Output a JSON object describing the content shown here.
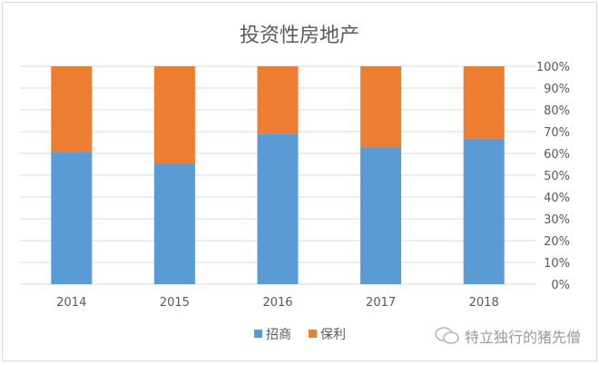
{
  "chart_data": {
    "type": "bar",
    "stacked": "percent",
    "title": "投资性房地产",
    "categories": [
      "2014",
      "2015",
      "2016",
      "2017",
      "2018"
    ],
    "series": [
      {
        "name": "招商",
        "color": "#5b9bd5",
        "values": [
          60.4,
          55.2,
          68.9,
          62.7,
          66.7
        ]
      },
      {
        "name": "保利",
        "color": "#ed7d31",
        "values": [
          39.6,
          44.8,
          31.1,
          37.3,
          33.3
        ]
      }
    ],
    "yticks": [
      "0%",
      "10%",
      "20%",
      "30%",
      "40%",
      "50%",
      "60%",
      "70%",
      "80%",
      "90%",
      "100%"
    ],
    "ylim": [
      0,
      100
    ],
    "yaxis_position": "right",
    "grid": true,
    "legend": "bottom"
  },
  "watermark": {
    "text": "特立独行的猪先僧",
    "icon": "wechat-icon"
  }
}
